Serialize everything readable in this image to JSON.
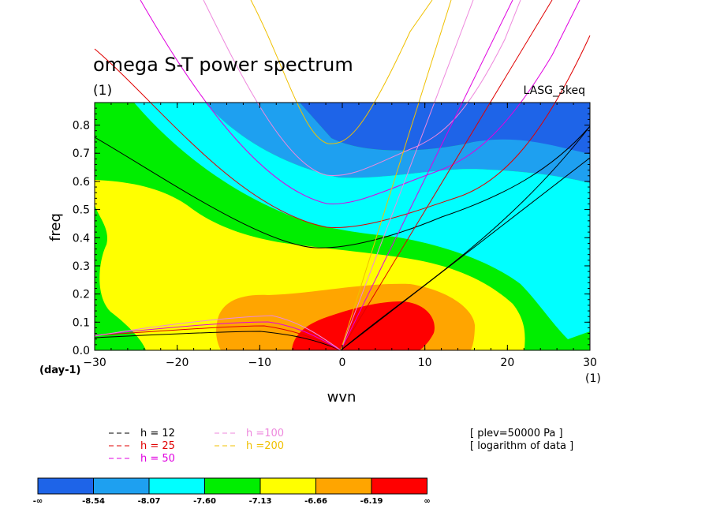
{
  "chart_data": {
    "type": "heatmap",
    "title": "omega S-T power spectrum",
    "subtitle": "(1)",
    "model": "LASG_3keq",
    "xlabel": "wvn",
    "ylabel": "freq",
    "x_unit": "(1)",
    "y_unit": "(day-1)",
    "xlim": [
      -30,
      30
    ],
    "ylim": [
      0,
      0.88
    ],
    "xticks": [
      -30,
      -20,
      -10,
      0,
      10,
      20,
      30
    ],
    "yticks": [
      0.0,
      0.1,
      0.2,
      0.3,
      0.4,
      0.5,
      0.6,
      0.7,
      0.8
    ],
    "notes": [
      "[ plev=50000 Pa ]",
      "[ logarithm of data ]"
    ],
    "colorbar": {
      "labels": [
        "-∞",
        "-8.54",
        "-8.07",
        "-7.60",
        "-7.13",
        "-6.66",
        "-6.19",
        "∞"
      ],
      "colors": [
        "#1e64e8",
        "#1ea0f0",
        "#00ffff",
        "#00ee00",
        "#ffff00",
        "#ffa500",
        "#ff0000"
      ]
    },
    "dispersion_legend": [
      {
        "label": "h = 12",
        "color": "#000000"
      },
      {
        "label": "h = 25",
        "color": "#e00000"
      },
      {
        "label": "h = 50",
        "color": "#e000e0"
      },
      {
        "label": "h =100",
        "color": "#ee88dd"
      },
      {
        "label": "h =200",
        "color": "#f0c000"
      }
    ],
    "contour_levels": [
      -8.54,
      -8.07,
      -7.6,
      -7.13,
      -6.66,
      -6.19
    ]
  }
}
